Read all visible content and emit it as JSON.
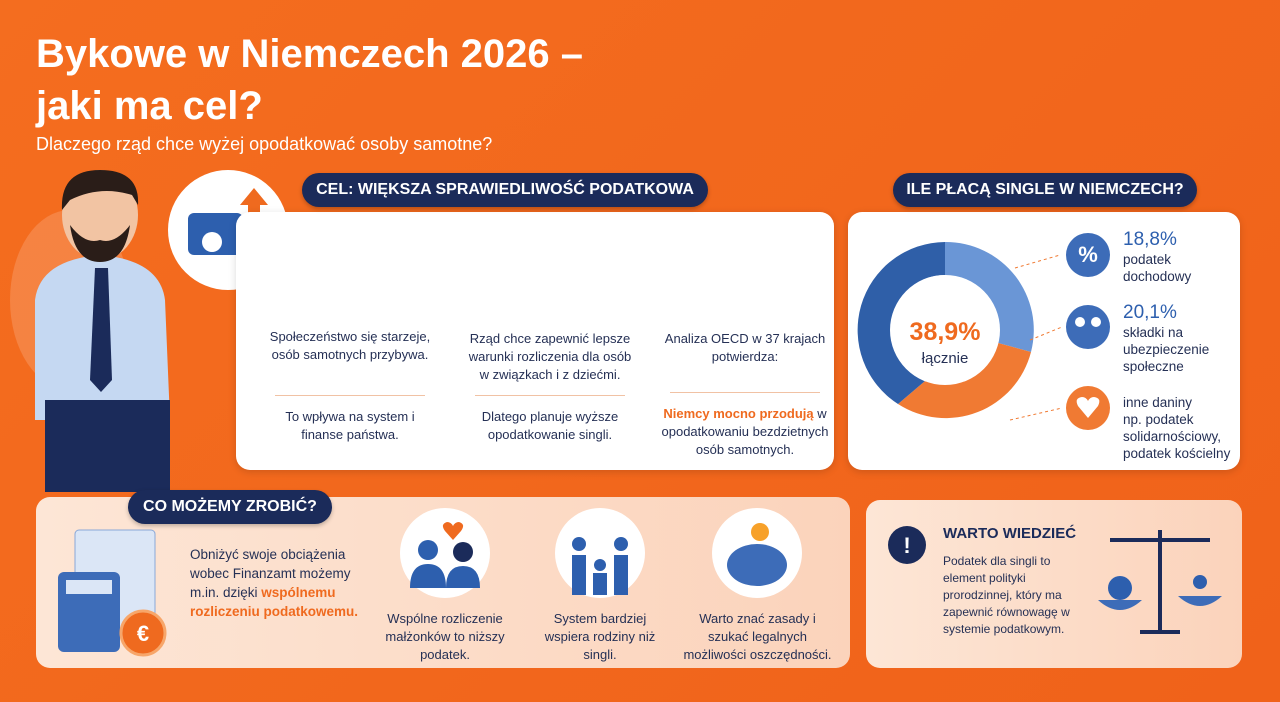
{
  "header": {
    "title_line1": "Bykowe w Niemczech 2026 –",
    "title_line2": "jaki ma cel?",
    "subtitle": "Dlaczego rząd chce wyżej opodatkować osoby samotne?"
  },
  "goal": {
    "heading": "CEL: WIĘKSZA SPRAWIEDLIWOŚĆ PODATKOWA",
    "columns": [
      {
        "top": "Społeczeństwo się starzeje, osób samotnych przybywa.",
        "bottom": "To wpływa na system i finanse państwa."
      },
      {
        "top": "Rząd chce zapewnić lepsze warunki rozliczenia dla osób w związkach i z dziećmi.",
        "bottom": "Dlatego planuje wyższe opodatkowanie singli."
      },
      {
        "top": "Analiza OECD w 37 krajach potwierdza:",
        "bottom_highlight": "Niemcy mocno przodują",
        "bottom": "w opodatkowaniu bezdzietnych osób samotnych."
      }
    ]
  },
  "singles": {
    "heading": "ILE PŁACĄ SINGLE W NIEMCZECH?",
    "total": "38,9%",
    "total_label": "łącznie",
    "items": [
      {
        "value": "18,8%",
        "label": "podatek dochodowy"
      },
      {
        "value": "20,1%",
        "label": "składki na ubezpieczenie społeczne"
      },
      {
        "value": "inne daniny",
        "label": "np. podatek solidarnościowy, podatek kościelny"
      }
    ]
  },
  "actions": {
    "heading": "CO MOŻEMY ZROBIĆ?",
    "intro": "Obniżyć swoje obciążenia wobec Finanzamt możemy m.in. dzięki",
    "intro_highlight": "wspólnemu rozliczeniu podatkowemu.",
    "items": [
      "Wspólne rozliczenie małżonków to niższy podatek.",
      "System bardziej wspiera rodziny niż singli.",
      "Warto znać zasady i szukać legalnych możliwości oszczędności."
    ]
  },
  "info": {
    "heading": "WARTO WIEDZIEĆ",
    "text": "Podatek dla singli to element polityki prorodzinnej, który ma zapewnić równowagę w systemie podatkowym."
  }
}
